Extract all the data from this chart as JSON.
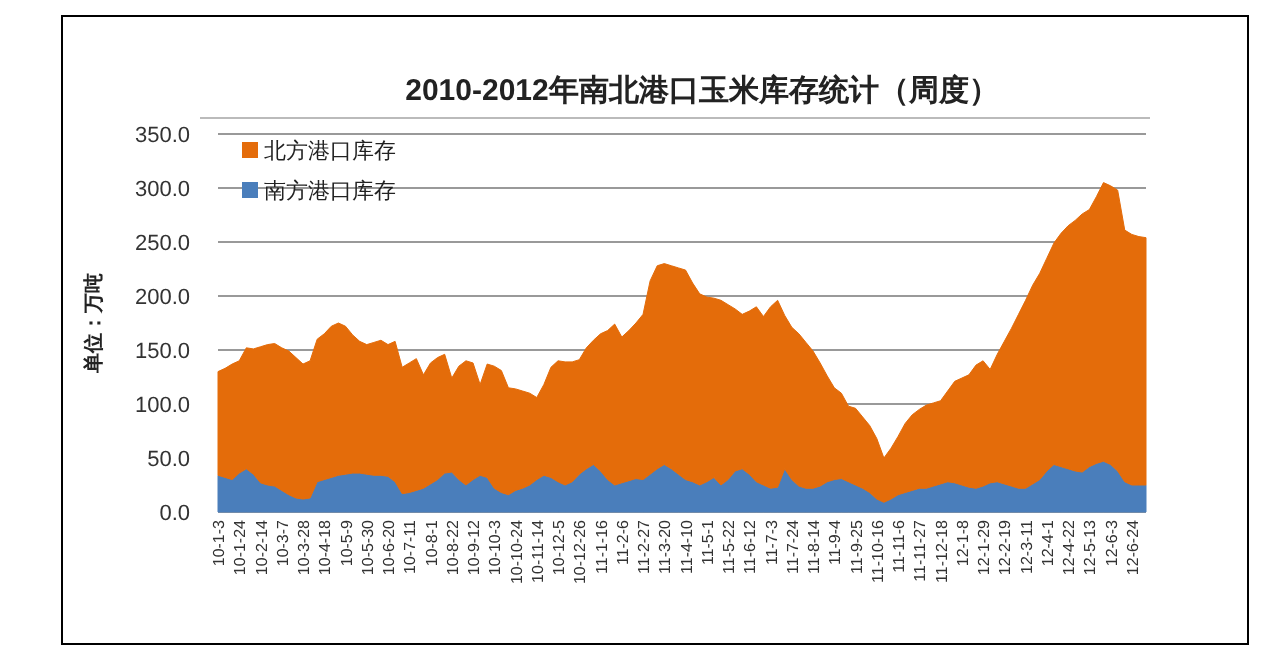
{
  "chart_data": {
    "type": "area",
    "stacked": true,
    "title": "2010-2012年南北港口玉米库存统计（周度）",
    "ylabel": "单位：万吨",
    "categories": [
      "10-1-3",
      null,
      null,
      "10-1-24",
      null,
      null,
      "10-2-14",
      null,
      null,
      "10-3-7",
      null,
      null,
      "10-3-28",
      null,
      null,
      "10-4-18",
      null,
      null,
      "10-5-9",
      null,
      null,
      "10-5-30",
      null,
      null,
      "10-6-20",
      null,
      null,
      "10-7-11",
      null,
      null,
      "10-8-1",
      null,
      null,
      "10-8-22",
      null,
      null,
      "10-9-12",
      null,
      null,
      "10-10-3",
      null,
      null,
      "10-10-24",
      null,
      null,
      "10-11-14",
      null,
      null,
      "10-12-5",
      null,
      null,
      "10-12-26",
      null,
      null,
      "11-1-16",
      null,
      null,
      "11-2-6",
      null,
      null,
      "11-2-27",
      null,
      null,
      "11-3-20",
      null,
      null,
      "11-4-10",
      null,
      null,
      "11-5-1",
      null,
      null,
      "11-5-22",
      null,
      null,
      "11-6-12",
      null,
      null,
      "11-7-3",
      null,
      null,
      "11-7-24",
      null,
      null,
      "11-8-14",
      null,
      null,
      "11-9-4",
      null,
      null,
      "11-9-25",
      null,
      null,
      "11-10-16",
      null,
      null,
      "11-11-6",
      null,
      null,
      "11-11-27",
      null,
      null,
      "11-12-18",
      null,
      null,
      "12-1-8",
      null,
      null,
      "12-1-29",
      null,
      null,
      "12-2-19",
      null,
      null,
      "12-3-11",
      null,
      null,
      "12-4-1",
      null,
      null,
      "12-4-22",
      null,
      null,
      "12-5-13",
      null,
      null,
      "12-6-3",
      null,
      null,
      "12-6-24",
      null,
      null
    ],
    "series": [
      {
        "name": "南方港口库存",
        "color": "#4a7ebb",
        "values": [
          34,
          32,
          30,
          36,
          40,
          35,
          27,
          25,
          24,
          20,
          16,
          13,
          12,
          13,
          28,
          30,
          32,
          34,
          35,
          36,
          36,
          35,
          34,
          34,
          33,
          28,
          17,
          18,
          20,
          22,
          26,
          30,
          36,
          37,
          30,
          25,
          30,
          34,
          32,
          22,
          18,
          16,
          20,
          22,
          25,
          30,
          34,
          32,
          28,
          25,
          28,
          35,
          40,
          44,
          38,
          30,
          25,
          27,
          29,
          31,
          30,
          35,
          40,
          44,
          40,
          35,
          30,
          28,
          25,
          28,
          32,
          25,
          30,
          38,
          40,
          35,
          28,
          25,
          22,
          23,
          40,
          30,
          24,
          22,
          22,
          24,
          28,
          30,
          31,
          28,
          25,
          22,
          18,
          12,
          9,
          12,
          16,
          18,
          20,
          22,
          22,
          24,
          26,
          28,
          27,
          25,
          23,
          22,
          24,
          27,
          28,
          26,
          24,
          22,
          22,
          26,
          30,
          38,
          44,
          42,
          40,
          38,
          37,
          42,
          45,
          47,
          44,
          38,
          28,
          25,
          25,
          25
        ]
      },
      {
        "name": "北方港口库存",
        "color": "#e46c0a",
        "values": [
          96,
          101,
          107,
          104,
          112,
          116,
          126,
          130,
          132,
          132,
          133,
          130,
          125,
          127,
          132,
          135,
          140,
          141,
          137,
          128,
          122,
          120,
          123,
          125,
          122,
          130,
          117,
          120,
          122,
          105,
          112,
          113,
          110,
          87,
          105,
          115,
          108,
          84,
          105,
          113,
          113,
          99,
          94,
          90,
          85,
          76,
          84,
          102,
          112,
          114,
          111,
          106,
          112,
          115,
          127,
          138,
          149,
          135,
          139,
          144,
          153,
          179,
          188,
          186,
          188,
          191,
          194,
          184,
          177,
          171,
          166,
          171,
          162,
          150,
          143,
          151,
          162,
          156,
          168,
          173,
          142,
          141,
          141,
          135,
          127,
          114,
          98,
          85,
          79,
          70,
          71,
          66,
          62,
          56,
          41,
          47,
          54,
          64,
          70,
          73,
          77,
          77,
          77,
          84,
          94,
          99,
          104,
          114,
          116,
          105,
          118,
          132,
          146,
          161,
          174,
          184,
          191,
          197,
          205,
          216,
          225,
          232,
          239,
          238,
          247,
          258,
          258,
          260,
          233,
          232,
          230,
          229
        ]
      }
    ],
    "ylim": [
      0,
      350
    ],
    "yticks": [
      {
        "value": 0,
        "label": "0.0"
      },
      {
        "value": 50,
        "label": "50.0"
      },
      {
        "value": 100,
        "label": "100.0"
      },
      {
        "value": 150,
        "label": "150.0"
      },
      {
        "value": 200,
        "label": "200.0"
      },
      {
        "value": 250,
        "label": "250.0"
      },
      {
        "value": 300,
        "label": "300.0"
      },
      {
        "value": 350,
        "label": "350.0"
      }
    ],
    "grid": "y",
    "legend": "top left"
  }
}
